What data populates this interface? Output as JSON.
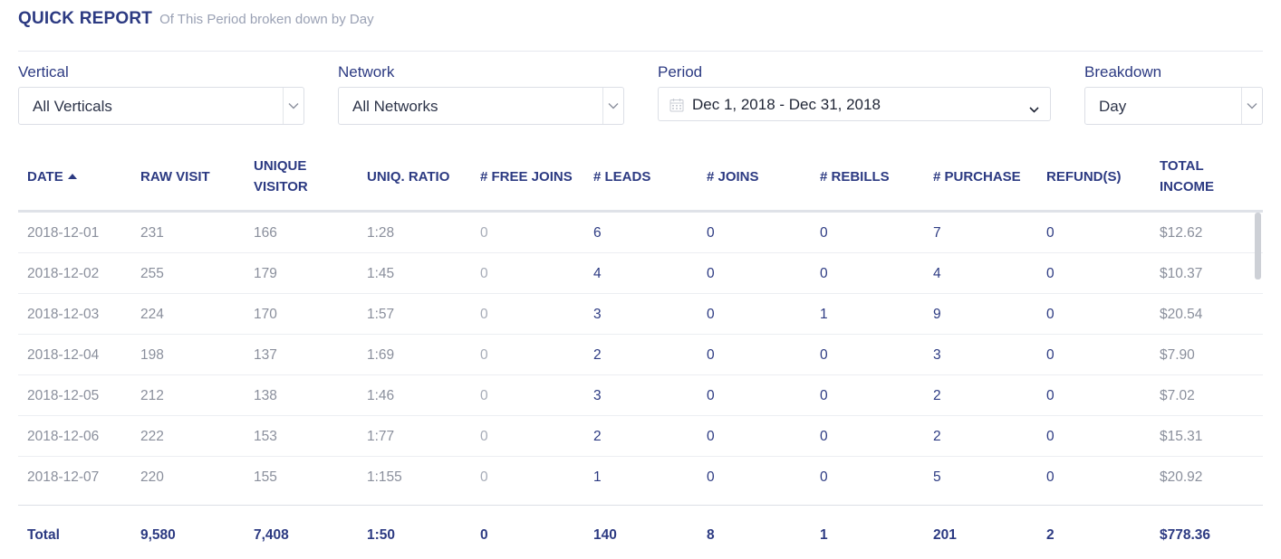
{
  "report": {
    "title": "QUICK REPORT",
    "subtitle": "Of This Period broken down by Day"
  },
  "filters": {
    "vertical": {
      "label": "Vertical",
      "value": "All Verticals"
    },
    "network": {
      "label": "Network",
      "value": "All Networks"
    },
    "period": {
      "label": "Period",
      "value": "Dec 1, 2018 - Dec 31, 2018"
    },
    "breakdown": {
      "label": "Breakdown",
      "value": "Day"
    }
  },
  "table": {
    "columns": [
      {
        "line1": "DATE",
        "line2": "",
        "sort": "asc"
      },
      {
        "line1": "RAW VISIT",
        "line2": ""
      },
      {
        "line1": "UNIQUE",
        "line2": "VISITOR"
      },
      {
        "line1": "UNIQ. RATIO",
        "line2": ""
      },
      {
        "line1": "# FREE JOINS",
        "line2": ""
      },
      {
        "line1": "# LEADS",
        "line2": ""
      },
      {
        "line1": "# JOINS",
        "line2": ""
      },
      {
        "line1": "# REBILLS",
        "line2": ""
      },
      {
        "line1": "# PURCHASE",
        "line2": ""
      },
      {
        "line1": "REFUND(S)",
        "line2": ""
      },
      {
        "line1": "TOTAL",
        "line2": "INCOME"
      }
    ],
    "rows": [
      [
        "2018-12-01",
        "231",
        "166",
        "1:28",
        "0",
        "6",
        "0",
        "0",
        "7",
        "0",
        "$12.62"
      ],
      [
        "2018-12-02",
        "255",
        "179",
        "1:45",
        "0",
        "4",
        "0",
        "0",
        "4",
        "0",
        "$10.37"
      ],
      [
        "2018-12-03",
        "224",
        "170",
        "1:57",
        "0",
        "3",
        "0",
        "1",
        "9",
        "0",
        "$20.54"
      ],
      [
        "2018-12-04",
        "198",
        "137",
        "1:69",
        "0",
        "2",
        "0",
        "0",
        "3",
        "0",
        "$7.90"
      ],
      [
        "2018-12-05",
        "212",
        "138",
        "1:46",
        "0",
        "3",
        "0",
        "0",
        "2",
        "0",
        "$7.02"
      ],
      [
        "2018-12-06",
        "222",
        "153",
        "1:77",
        "0",
        "2",
        "0",
        "0",
        "2",
        "0",
        "$15.31"
      ],
      [
        "2018-12-07",
        "220",
        "155",
        "1:155",
        "0",
        "1",
        "0",
        "0",
        "5",
        "0",
        "$20.92"
      ]
    ],
    "totals": [
      "Total",
      "9,580",
      "7,408",
      "1:50",
      "0",
      "140",
      "8",
      "1",
      "201",
      "2",
      "$778.36"
    ]
  },
  "colors": {
    "accent": "#2c3a82",
    "muted_text": "#8a8f9c",
    "light_text": "#a6abb7",
    "border": "#dcdfe6"
  },
  "icons": {
    "select_caret": "chevron-down-icon",
    "period": "calendar-icon",
    "sort": "sort-asc-icon"
  }
}
